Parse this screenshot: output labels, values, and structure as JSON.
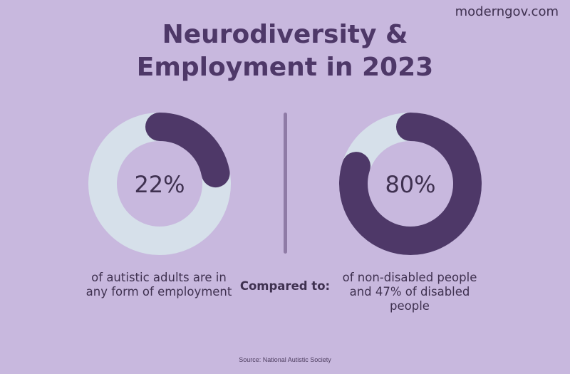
{
  "brand": "moderngov.com",
  "title_lines": [
    "Neurodiversity &",
    "Employment in 2023"
  ],
  "compared_label": "Compared to:",
  "source": "Source: National Autistic Society",
  "colors": {
    "background": "#c8b8de",
    "track": "#d6e0ea",
    "fill": "#4e3868",
    "text": "#3f3150"
  },
  "chart_data": [
    {
      "type": "pie",
      "variant": "donut",
      "value": 22,
      "label": "22%",
      "caption": "of autistic adults are in any form of employment"
    },
    {
      "type": "pie",
      "variant": "donut",
      "value": 80,
      "label": "80%",
      "caption": "of non-disabled people and 47% of disabled people"
    }
  ]
}
